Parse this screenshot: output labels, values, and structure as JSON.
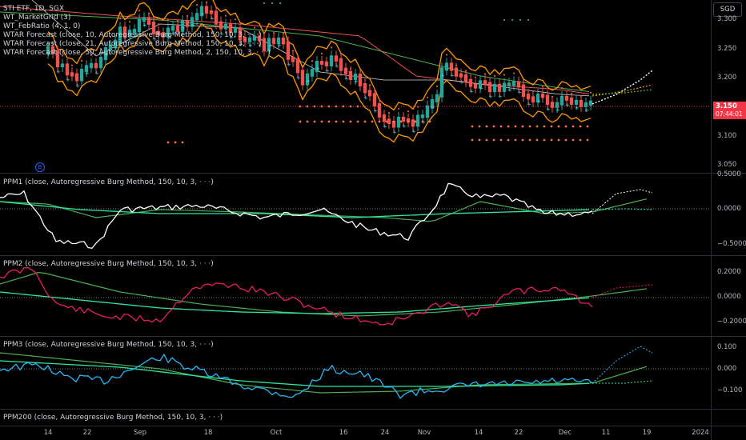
{
  "main_legend": [
    "STI ETF, 1D, SGX",
    "WT_MarketGrid (3)",
    "WT_FebRatio (4, 1, 0)",
    "WTAR Forecast (close, 10, Autoregressive Burg Method, 150, 10, 3, · · ·)",
    "WTAR Forecast (close, 21, Autoregressive Burg Method, 150, 10, 3, · · ·)",
    "WTAR Forecast (close, 50, Autoregressive Burg Method, 2, 150, 10, 3, · · ·)"
  ],
  "currency_button": "SGD",
  "price_badge": {
    "price": "3.150",
    "countdown": "07:44:01"
  },
  "event_badge": "B",
  "main_yticks": [
    "3.300",
    "3.250",
    "3.200",
    "3.100",
    "3.050"
  ],
  "pane_legends": {
    "ppm1": "PPM1 (close, Autoregressive Burg Method, 150, 10, 3, · · ·)",
    "ppm2": "PPM2 (close, Autoregressive Burg Method, 150, 10, 3, · · ·)",
    "ppm3": "PPM3 (close, Autoregressive Burg Method, 150, 10, 3, · · ·)",
    "ppm200": "PPM200 (close, Autoregressive Burg Method, 150, 10, 3, · · ·)"
  },
  "ppm1_yticks": [
    "0.5000",
    "0.0000",
    "−0.5000"
  ],
  "ppm2_yticks": [
    "0.2000",
    "0.0000",
    "−0.2000"
  ],
  "ppm3_yticks": [
    "0.100",
    "0.000",
    "−0.100"
  ],
  "x_ticks": [
    "14",
    "22",
    "Sep",
    "18",
    "Oct",
    "16",
    "24",
    "Nov",
    "14",
    "22",
    "Dec",
    "11",
    "19",
    "2024"
  ],
  "colors": {
    "background": "#000000",
    "candle_up": "#26a69a",
    "candle_down": "#ef5350",
    "band": "#ff9800",
    "ppm_white": "#ffffff",
    "ppm_pink": "#e91e63",
    "ppm_cyan": "#29b6f6",
    "signal_green": "#4caf50",
    "signal_mint": "#2ee6a0",
    "price_badge": "#f23645"
  }
}
